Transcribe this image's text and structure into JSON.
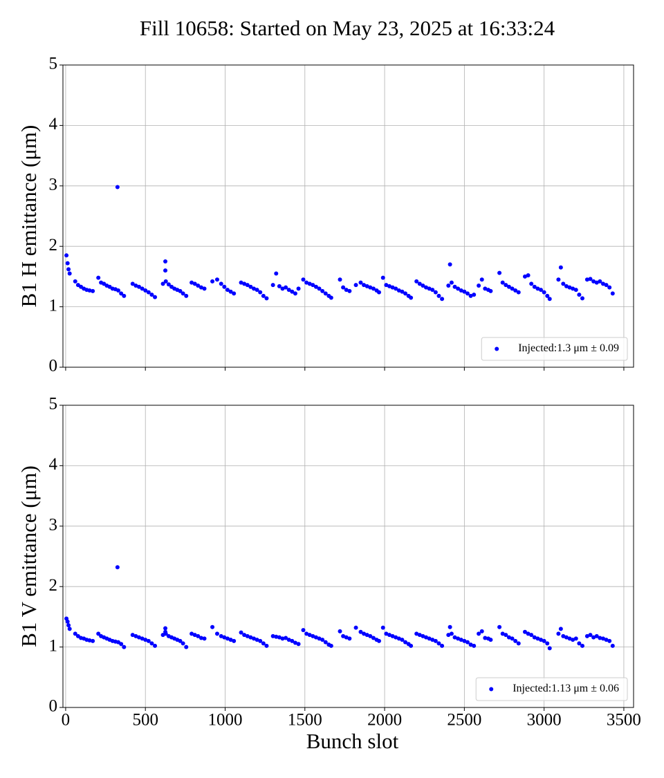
{
  "title": "Fill 10658: Started on May 23, 2025 at 16:33:24",
  "chart_data": [
    {
      "type": "scatter",
      "ylabel": "B1 H emittance (μm)",
      "x": [
        5,
        12,
        18,
        25,
        60,
        78,
        96,
        114,
        132,
        150,
        170,
        205,
        222,
        240,
        258,
        276,
        294,
        312,
        325,
        330,
        348,
        366,
        420,
        440,
        460,
        480,
        500,
        520,
        540,
        560,
        610,
        625,
        625,
        628,
        646,
        664,
        682,
        700,
        718,
        736,
        756,
        790,
        810,
        830,
        850,
        870,
        920,
        950,
        975,
        995,
        1015,
        1035,
        1055,
        1100,
        1120,
        1140,
        1160,
        1180,
        1200,
        1220,
        1240,
        1260,
        1300,
        1320,
        1340,
        1360,
        1380,
        1400,
        1420,
        1440,
        1460,
        1490,
        1510,
        1530,
        1550,
        1570,
        1590,
        1610,
        1630,
        1650,
        1665,
        1720,
        1740,
        1760,
        1780,
        1820,
        1850,
        1870,
        1890,
        1910,
        1930,
        1950,
        1965,
        1990,
        2010,
        2030,
        2050,
        2070,
        2090,
        2110,
        2130,
        2150,
        2165,
        2200,
        2220,
        2240,
        2260,
        2280,
        2300,
        2320,
        2340,
        2360,
        2400,
        2410,
        2420,
        2440,
        2460,
        2480,
        2500,
        2520,
        2540,
        2560,
        2590,
        2610,
        2630,
        2650,
        2665,
        2720,
        2740,
        2760,
        2780,
        2800,
        2820,
        2840,
        2880,
        2900,
        2920,
        2940,
        2960,
        2980,
        3000,
        3020,
        3035,
        3090,
        3105,
        3120,
        3140,
        3160,
        3180,
        3200,
        3220,
        3240,
        3270,
        3290,
        3310,
        3330,
        3350,
        3370,
        3390,
        3410,
        3430
      ],
      "series": [
        {
          "name": "Injected:1.3 μm ± 0.09",
          "color": "#0000ff",
          "values": [
            1.85,
            1.72,
            1.62,
            1.55,
            1.42,
            1.36,
            1.33,
            1.3,
            1.28,
            1.27,
            1.26,
            1.48,
            1.4,
            1.38,
            1.35,
            1.33,
            1.3,
            1.29,
            2.98,
            1.27,
            1.22,
            1.18,
            1.38,
            1.35,
            1.33,
            1.3,
            1.27,
            1.24,
            1.2,
            1.16,
            1.38,
            1.75,
            1.6,
            1.42,
            1.37,
            1.33,
            1.3,
            1.28,
            1.26,
            1.22,
            1.18,
            1.4,
            1.38,
            1.35,
            1.32,
            1.3,
            1.42,
            1.45,
            1.38,
            1.33,
            1.28,
            1.25,
            1.22,
            1.4,
            1.38,
            1.36,
            1.33,
            1.3,
            1.28,
            1.24,
            1.18,
            1.14,
            1.36,
            1.55,
            1.34,
            1.3,
            1.32,
            1.28,
            1.25,
            1.22,
            1.3,
            1.45,
            1.4,
            1.38,
            1.36,
            1.33,
            1.3,
            1.26,
            1.22,
            1.18,
            1.15,
            1.45,
            1.32,
            1.28,
            1.26,
            1.36,
            1.4,
            1.36,
            1.34,
            1.32,
            1.3,
            1.27,
            1.24,
            1.48,
            1.36,
            1.34,
            1.32,
            1.3,
            1.27,
            1.25,
            1.22,
            1.18,
            1.15,
            1.42,
            1.38,
            1.35,
            1.32,
            1.3,
            1.28,
            1.24,
            1.18,
            1.13,
            1.35,
            1.7,
            1.4,
            1.33,
            1.3,
            1.27,
            1.25,
            1.22,
            1.18,
            1.2,
            1.35,
            1.45,
            1.3,
            1.28,
            1.26,
            1.56,
            1.4,
            1.36,
            1.33,
            1.3,
            1.27,
            1.24,
            1.5,
            1.52,
            1.38,
            1.33,
            1.3,
            1.28,
            1.24,
            1.18,
            1.13,
            1.45,
            1.65,
            1.38,
            1.34,
            1.32,
            1.3,
            1.28,
            1.2,
            1.14,
            1.45,
            1.46,
            1.42,
            1.4,
            1.42,
            1.38,
            1.36,
            1.32,
            1.22
          ]
        }
      ],
      "xlim": [
        -17,
        3561
      ],
      "ylim": [
        0,
        5
      ],
      "xticks": [
        0,
        500,
        1000,
        1500,
        2000,
        2500,
        3000,
        3500
      ],
      "yticks": [
        0,
        1,
        2,
        3,
        4,
        5
      ],
      "grid": true,
      "legend": "lower right"
    },
    {
      "type": "scatter",
      "ylabel": "B1 V emittance (μm)",
      "xlabel": "Bunch slot",
      "x": [
        5,
        12,
        18,
        25,
        60,
        78,
        96,
        114,
        132,
        150,
        170,
        205,
        222,
        240,
        258,
        276,
        294,
        312,
        325,
        330,
        348,
        366,
        420,
        440,
        460,
        480,
        500,
        520,
        540,
        560,
        610,
        625,
        625,
        628,
        646,
        664,
        682,
        700,
        718,
        736,
        756,
        790,
        810,
        830,
        850,
        870,
        920,
        950,
        975,
        995,
        1015,
        1035,
        1055,
        1100,
        1120,
        1140,
        1160,
        1180,
        1200,
        1220,
        1240,
        1260,
        1300,
        1320,
        1340,
        1360,
        1380,
        1400,
        1420,
        1440,
        1460,
        1490,
        1510,
        1530,
        1550,
        1570,
        1590,
        1610,
        1630,
        1650,
        1665,
        1720,
        1740,
        1760,
        1780,
        1820,
        1850,
        1870,
        1890,
        1910,
        1930,
        1950,
        1965,
        1990,
        2010,
        2030,
        2050,
        2070,
        2090,
        2110,
        2130,
        2150,
        2165,
        2200,
        2220,
        2240,
        2260,
        2280,
        2300,
        2320,
        2340,
        2360,
        2400,
        2410,
        2420,
        2440,
        2460,
        2480,
        2500,
        2520,
        2540,
        2560,
        2590,
        2610,
        2630,
        2650,
        2665,
        2720,
        2740,
        2760,
        2780,
        2800,
        2820,
        2840,
        2880,
        2900,
        2920,
        2940,
        2960,
        2980,
        3000,
        3020,
        3035,
        3090,
        3105,
        3120,
        3140,
        3160,
        3180,
        3200,
        3220,
        3240,
        3270,
        3290,
        3310,
        3330,
        3350,
        3370,
        3390,
        3410,
        3430
      ],
      "series": [
        {
          "name": "Injected:1.13 μm ± 0.06",
          "color": "#0000ff",
          "values": [
            1.47,
            1.42,
            1.36,
            1.3,
            1.22,
            1.18,
            1.15,
            1.14,
            1.12,
            1.11,
            1.1,
            1.22,
            1.18,
            1.16,
            1.14,
            1.12,
            1.1,
            1.09,
            2.32,
            1.08,
            1.05,
            1.0,
            1.2,
            1.18,
            1.16,
            1.14,
            1.12,
            1.1,
            1.06,
            1.02,
            1.2,
            1.31,
            1.25,
            1.22,
            1.18,
            1.16,
            1.14,
            1.12,
            1.1,
            1.06,
            1.0,
            1.22,
            1.2,
            1.18,
            1.15,
            1.14,
            1.33,
            1.22,
            1.18,
            1.16,
            1.14,
            1.12,
            1.1,
            1.24,
            1.2,
            1.18,
            1.16,
            1.14,
            1.12,
            1.1,
            1.06,
            1.02,
            1.18,
            1.17,
            1.16,
            1.14,
            1.15,
            1.12,
            1.1,
            1.07,
            1.05,
            1.28,
            1.22,
            1.2,
            1.18,
            1.16,
            1.14,
            1.12,
            1.08,
            1.04,
            1.02,
            1.26,
            1.18,
            1.16,
            1.14,
            1.32,
            1.25,
            1.22,
            1.2,
            1.18,
            1.15,
            1.12,
            1.1,
            1.32,
            1.22,
            1.2,
            1.18,
            1.16,
            1.14,
            1.12,
            1.08,
            1.05,
            1.02,
            1.22,
            1.2,
            1.18,
            1.16,
            1.14,
            1.12,
            1.1,
            1.06,
            1.02,
            1.2,
            1.33,
            1.22,
            1.16,
            1.14,
            1.12,
            1.1,
            1.08,
            1.04,
            1.02,
            1.22,
            1.26,
            1.15,
            1.14,
            1.12,
            1.33,
            1.22,
            1.2,
            1.16,
            1.14,
            1.1,
            1.06,
            1.25,
            1.22,
            1.2,
            1.16,
            1.14,
            1.12,
            1.1,
            1.06,
            0.98,
            1.22,
            1.3,
            1.18,
            1.16,
            1.14,
            1.12,
            1.14,
            1.06,
            1.02,
            1.18,
            1.2,
            1.16,
            1.18,
            1.15,
            1.14,
            1.12,
            1.1,
            1.02
          ]
        }
      ],
      "xlim": [
        -17,
        3561
      ],
      "ylim": [
        0,
        5
      ],
      "xticks": [
        0,
        500,
        1000,
        1500,
        2000,
        2500,
        3000,
        3500
      ],
      "yticks": [
        0,
        1,
        2,
        3,
        4,
        5
      ],
      "grid": true,
      "legend": "lower right"
    }
  ]
}
